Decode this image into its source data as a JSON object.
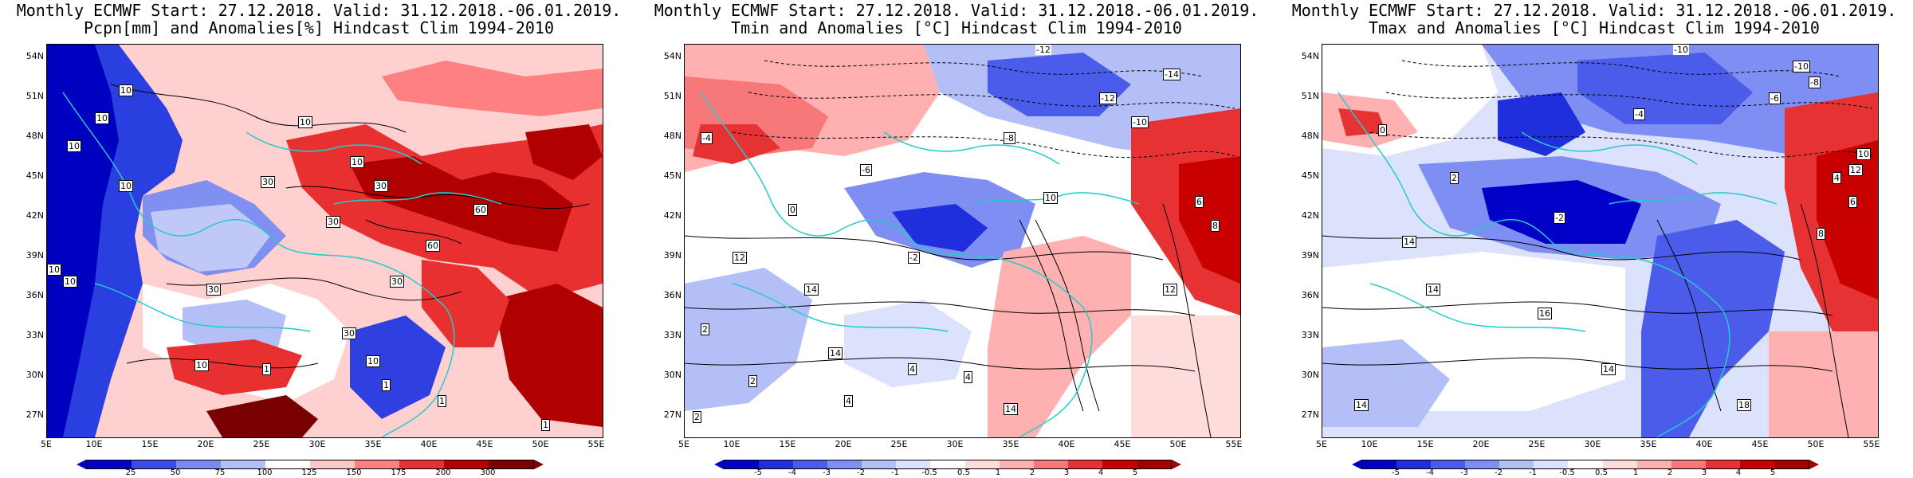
{
  "panels": [
    {
      "title_line1": "Monthly ECMWF Start: 27.12.2018. Valid: 31.12.2018.-06.01.2019.",
      "title_line2": "Pcpn[mm] and Anomalies[%] Hindcast Clim 1994-2010",
      "colorbar_labels": [
        "25",
        "50",
        "75",
        "100",
        "125",
        "150",
        "175",
        "200",
        "300"
      ],
      "colorbar_colors": [
        "#0000c8",
        "#3a4de8",
        "#7a8af0",
        "#b4bff8",
        "#ffffff",
        "#ffc8c8",
        "#ff8080",
        "#e63232",
        "#b40000",
        "#780000"
      ],
      "contour_labels": [
        "10",
        "10",
        "10",
        "10",
        "10",
        "10",
        "10",
        "30",
        "30",
        "30",
        "60",
        "60",
        "30",
        "30",
        "30",
        "10",
        "10",
        "10",
        "1",
        "1",
        "1",
        "1"
      ]
    },
    {
      "title_line1": "Monthly ECMWF Start: 27.12.2018. Valid: 31.12.2018.-06.01.2019.",
      "title_line2": "Tmin and Anomalies [°C] Hindcast Clim 1994-2010",
      "colorbar_labels": [
        "-5",
        "-4",
        "-3",
        "-2",
        "-1",
        "-0.5",
        "0.5",
        "1",
        "2",
        "3",
        "4",
        "5"
      ],
      "colorbar_colors": [
        "#0000c8",
        "#1f2fdc",
        "#4b5ceb",
        "#7f8ef2",
        "#b4bff8",
        "#dde2fc",
        "#ffffff",
        "#ffdcdc",
        "#ffb0b0",
        "#f77878",
        "#e63232",
        "#c80000",
        "#a00000"
      ],
      "contour_labels": [
        "-12",
        "-14",
        "-12",
        "-10",
        "-8",
        "-6",
        "-4",
        "-2",
        "0",
        "2",
        "4",
        "6",
        "8",
        "10",
        "12",
        "12",
        "14",
        "14",
        "14",
        "2",
        "2",
        "4",
        "4"
      ]
    },
    {
      "title_line1": "Monthly ECMWF Start: 27.12.2018. Valid: 31.12.2018.-06.01.2019.",
      "title_line2": "Tmax and Anomalies [°C] Hindcast Clim 1994-2010",
      "colorbar_labels": [
        "-5",
        "-4",
        "-3",
        "-2",
        "-1",
        "-0.5",
        "0.5",
        "1",
        "2",
        "3",
        "4",
        "5"
      ],
      "colorbar_colors": [
        "#0000c8",
        "#1f2fdc",
        "#4b5ceb",
        "#7f8ef2",
        "#b4bff8",
        "#dde2fc",
        "#ffffff",
        "#ffdcdc",
        "#ffb0b0",
        "#f77878",
        "#e63232",
        "#c80000",
        "#a00000"
      ],
      "contour_labels": [
        "-10",
        "-10",
        "-8",
        "-6",
        "-4",
        "-2",
        "0",
        "2",
        "4",
        "6",
        "8",
        "10",
        "12",
        "14",
        "14",
        "16",
        "18",
        "14",
        "14"
      ]
    }
  ],
  "lat_labels": [
    "54N",
    "51N",
    "48N",
    "45N",
    "42N",
    "39N",
    "36N",
    "33N",
    "30N",
    "27N"
  ],
  "lon_labels": [
    "5E",
    "10E",
    "15E",
    "20E",
    "25E",
    "30E",
    "35E",
    "40E",
    "45E",
    "50E",
    "55E"
  ]
}
